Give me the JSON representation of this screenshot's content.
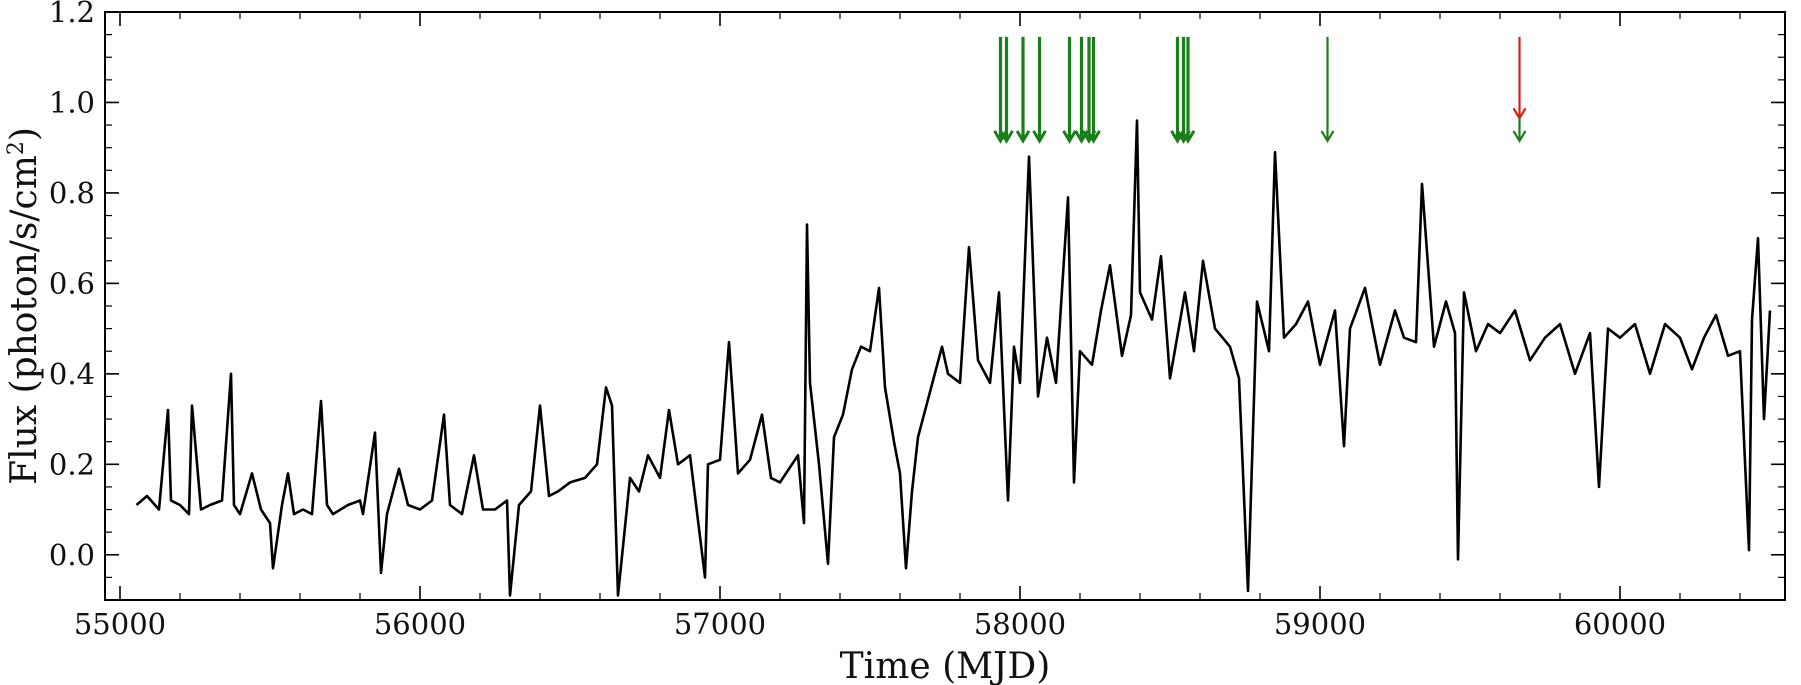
{
  "chart_data": {
    "type": "line",
    "xlabel": "Time (MJD)",
    "ylabel": "Flux (photon/s/cm²)",
    "ylabel_main": "Flux (photon/s/cm",
    "ylabel_sup": "2",
    "ylabel_close": ")",
    "xlim": [
      54950,
      60550
    ],
    "ylim": [
      -0.1,
      1.2
    ],
    "x_ticks": [
      55000,
      56000,
      57000,
      58000,
      59000,
      60000
    ],
    "x_tick_labels": [
      "55000",
      "56000",
      "57000",
      "58000",
      "59000",
      "60000"
    ],
    "y_ticks": [
      0.0,
      0.2,
      0.4,
      0.6,
      0.8,
      1.0,
      1.2
    ],
    "y_tick_labels": [
      "0.0",
      "0.2",
      "0.4",
      "0.6",
      "0.8",
      "1.0",
      "1.2"
    ],
    "x_minor_step": 200,
    "y_minor_step": 0.05,
    "grid": false,
    "legend": "none",
    "line_color": "#000000",
    "marker_colors": {
      "green": "#1a7f1a",
      "red": "#d41f1f"
    },
    "series": [
      {
        "x": [
          55055,
          55090,
          55130,
          55160,
          55170,
          55200,
          55230,
          55240,
          55270,
          55300,
          55340,
          55370,
          55380,
          55400,
          55440,
          55470,
          55500,
          55510,
          55540,
          55560,
          55580,
          55610,
          55640,
          55670,
          55690,
          55710,
          55760,
          55800,
          55810,
          55850,
          55870,
          55890,
          55930,
          55960,
          56000,
          56040,
          56080,
          56100,
          56140,
          56180,
          56210,
          56250,
          56290,
          56300,
          56330,
          56370,
          56400,
          56430,
          56460,
          56500,
          56550,
          56590,
          56620,
          56640,
          56660,
          56700,
          56730,
          56760,
          56800,
          56830,
          56860,
          56900,
          56950,
          56960,
          57000,
          57030,
          57060,
          57100,
          57140,
          57170,
          57200,
          57230,
          57260,
          57280,
          57290,
          57300,
          57330,
          57360,
          57380,
          57410,
          57440,
          57470,
          57500,
          57530,
          57550,
          57580,
          57600,
          57620,
          57640,
          57660,
          57700,
          57740,
          57760,
          57800,
          57830,
          57860,
          57900,
          57930,
          57960,
          57980,
          58000,
          58030,
          58060,
          58090,
          58120,
          58160,
          58180,
          58200,
          58240,
          58270,
          58300,
          58340,
          58370,
          58390,
          58400,
          58440,
          58470,
          58500,
          58550,
          58580,
          58610,
          58650,
          58700,
          58730,
          58760,
          58790,
          58830,
          58850,
          58880,
          58920,
          58960,
          59000,
          59050,
          59080,
          59100,
          59150,
          59200,
          59250,
          59280,
          59320,
          59340,
          59380,
          59420,
          59450,
          59460,
          59480,
          59520,
          59560,
          59600,
          59650,
          59700,
          59750,
          59800,
          59850,
          59900,
          59930,
          59960,
          60000,
          60050,
          60100,
          60150,
          60200,
          60240,
          60280,
          60320,
          60360,
          60400,
          60430,
          60440,
          60460,
          60480,
          60500
        ],
        "y": [
          0.11,
          0.13,
          0.1,
          0.32,
          0.12,
          0.11,
          0.09,
          0.33,
          0.1,
          0.11,
          0.12,
          0.4,
          0.11,
          0.09,
          0.18,
          0.1,
          0.07,
          -0.03,
          0.11,
          0.18,
          0.09,
          0.1,
          0.09,
          0.34,
          0.11,
          0.09,
          0.11,
          0.12,
          0.09,
          0.27,
          -0.04,
          0.09,
          0.19,
          0.11,
          0.1,
          0.12,
          0.31,
          0.11,
          0.09,
          0.22,
          0.1,
          0.1,
          0.12,
          -0.09,
          0.11,
          0.14,
          0.33,
          0.13,
          0.14,
          0.16,
          0.17,
          0.2,
          0.37,
          0.33,
          -0.09,
          0.17,
          0.14,
          0.22,
          0.17,
          0.32,
          0.2,
          0.22,
          -0.05,
          0.2,
          0.21,
          0.47,
          0.18,
          0.21,
          0.31,
          0.17,
          0.16,
          0.19,
          0.22,
          0.07,
          0.73,
          0.38,
          0.2,
          -0.02,
          0.26,
          0.31,
          0.41,
          0.46,
          0.45,
          0.59,
          0.37,
          0.25,
          0.18,
          -0.03,
          0.14,
          0.26,
          0.36,
          0.46,
          0.4,
          0.38,
          0.68,
          0.43,
          0.38,
          0.58,
          0.12,
          0.46,
          0.38,
          0.88,
          0.35,
          0.48,
          0.38,
          0.79,
          0.16,
          0.45,
          0.42,
          0.54,
          0.64,
          0.44,
          0.53,
          0.96,
          0.58,
          0.52,
          0.66,
          0.39,
          0.58,
          0.45,
          0.65,
          0.5,
          0.46,
          0.39,
          -0.08,
          0.56,
          0.45,
          0.89,
          0.48,
          0.51,
          0.56,
          0.42,
          0.54,
          0.24,
          0.5,
          0.59,
          0.42,
          0.54,
          0.48,
          0.47,
          0.82,
          0.46,
          0.56,
          0.49,
          -0.01,
          0.58,
          0.45,
          0.51,
          0.49,
          0.54,
          0.43,
          0.48,
          0.51,
          0.4,
          0.49,
          0.15,
          0.5,
          0.48,
          0.51,
          0.4,
          0.51,
          0.48,
          0.41,
          0.48,
          0.53,
          0.44,
          0.45,
          0.01,
          0.52,
          0.7,
          0.3,
          0.54
        ]
      }
    ],
    "arrows": [
      {
        "x": 57935,
        "color": "green",
        "style": "thick"
      },
      {
        "x": 57955,
        "color": "green",
        "style": "thick"
      },
      {
        "x": 58010,
        "color": "green",
        "style": "thick"
      },
      {
        "x": 58065,
        "color": "green",
        "style": "thick"
      },
      {
        "x": 58165,
        "color": "green",
        "style": "thick"
      },
      {
        "x": 58205,
        "color": "green",
        "style": "thick"
      },
      {
        "x": 58230,
        "color": "green",
        "style": "thick"
      },
      {
        "x": 58245,
        "color": "green",
        "style": "thick"
      },
      {
        "x": 58525,
        "color": "green",
        "style": "thick"
      },
      {
        "x": 58545,
        "color": "green",
        "style": "thick"
      },
      {
        "x": 58560,
        "color": "green",
        "style": "thick"
      },
      {
        "x": 59025,
        "color": "green",
        "style": "thin"
      },
      {
        "x": 59665,
        "color": "red",
        "style": "thin"
      },
      {
        "x": 59665,
        "color": "green",
        "style": "thin"
      }
    ]
  }
}
